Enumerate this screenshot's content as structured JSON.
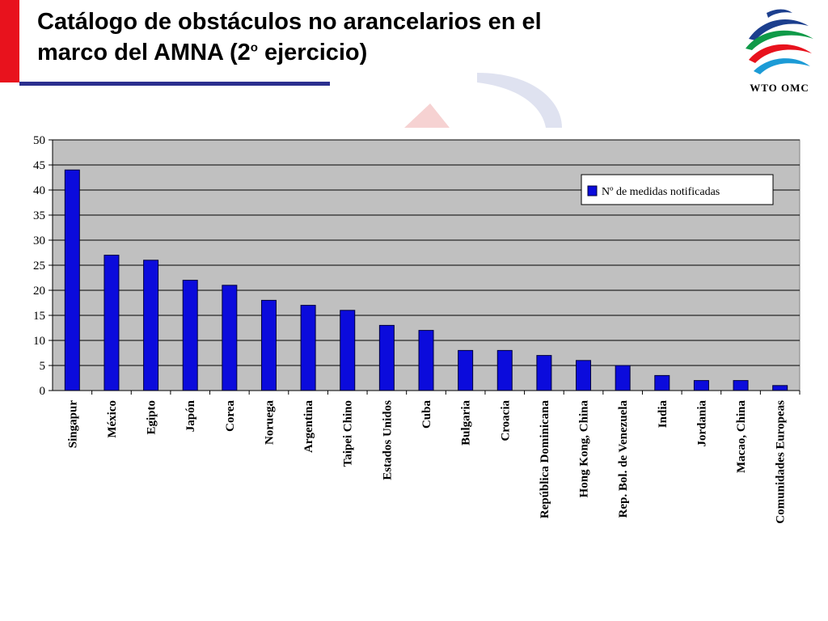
{
  "slide": {
    "title_line1": "Catálogo de obstáculos no arancelarios en el",
    "title_line2_pre": "marco del AMNA (2",
    "title_sup": "o",
    "title_line2_post": " ejercicio)",
    "logo_text": "WTO OMC"
  },
  "colors": {
    "accent_red": "#e8121d",
    "rule_blue": "#2b2f8f",
    "bar_fill": "#0b0bdc",
    "plot_bg": "#c0c0c0"
  },
  "chart_data": {
    "type": "bar",
    "title": "",
    "xlabel": "",
    "ylabel": "",
    "ylim": [
      0,
      50
    ],
    "yticks": [
      0,
      5,
      10,
      15,
      20,
      25,
      30,
      35,
      40,
      45,
      50
    ],
    "grid": true,
    "legend_position": "top-right",
    "categories": [
      "Singapur",
      "México",
      "Egipto",
      "Japón",
      "Corea",
      "Noruega",
      "Argentina",
      "Taipei Chino",
      "Estados Unidos",
      "Cuba",
      "Bulgaria",
      "Croacia",
      "República Dominicana",
      "Hong Kong, China",
      "Rep. Bol. de Venezuela",
      "India",
      "Jordania",
      "Macao, China",
      "Comunidades Europeas"
    ],
    "series": [
      {
        "name": "Nº de medidas notificadas",
        "values": [
          44,
          27,
          26,
          22,
          21,
          18,
          17,
          16,
          13,
          12,
          8,
          8,
          7,
          6,
          5,
          3,
          2,
          2,
          1
        ]
      }
    ]
  }
}
